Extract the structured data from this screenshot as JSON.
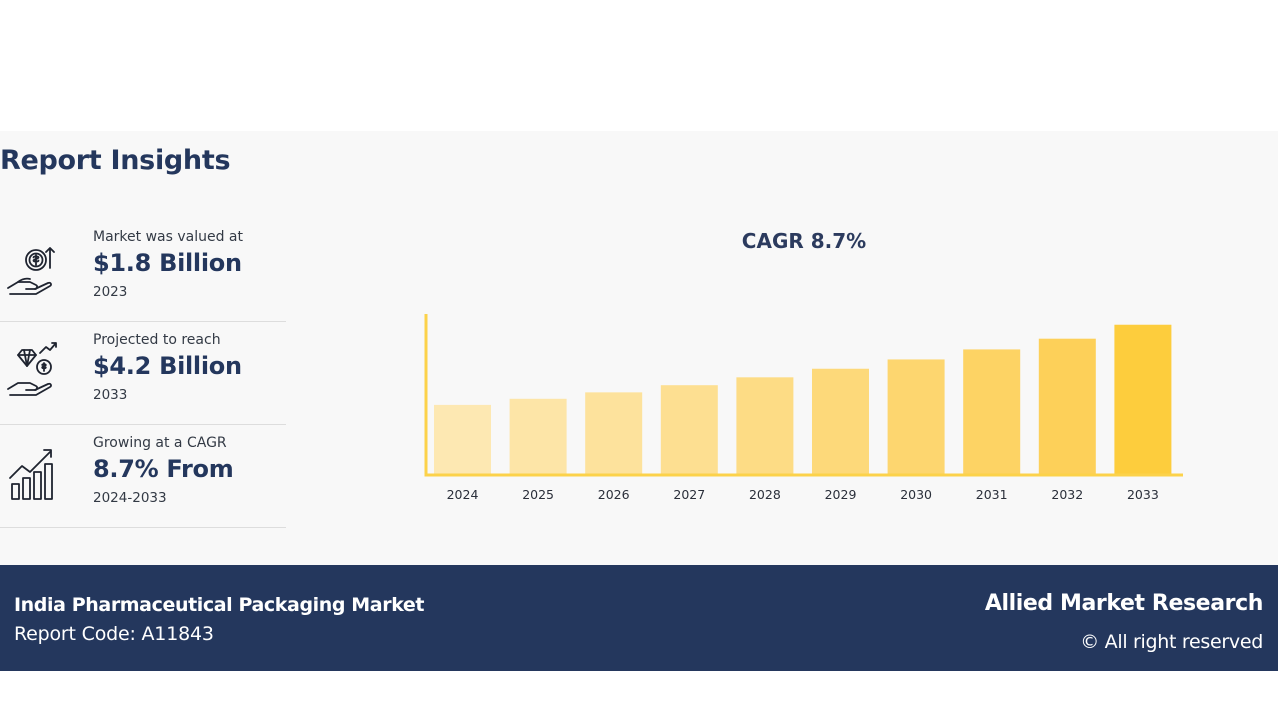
{
  "page": {
    "heading": "Report Insights"
  },
  "stats": [
    {
      "label": "Market was valued at",
      "value": "$1.8 Billion",
      "year": "2023",
      "icon": "money-hand-icon"
    },
    {
      "label": "Projected to reach",
      "value": "$4.2 Billion",
      "year": "2033",
      "icon": "diamond-coin-hand-icon"
    },
    {
      "label": "Growing at a CAGR",
      "value": "8.7% From",
      "year": "2024-2033",
      "icon": "growth-bars-icon"
    }
  ],
  "chart_data": {
    "type": "bar",
    "title": "CAGR 8.7%",
    "xlabel": "",
    "ylabel": "",
    "categories": [
      "2024",
      "2025",
      "2026",
      "2027",
      "2028",
      "2029",
      "2030",
      "2031",
      "2032",
      "2033"
    ],
    "values": [
      1.96,
      2.13,
      2.31,
      2.51,
      2.73,
      2.97,
      3.23,
      3.51,
      3.81,
      4.2
    ],
    "ylim": [
      0,
      4.5
    ],
    "grid": false,
    "colors": [
      "#fde8b2",
      "#fde5a7",
      "#fde29c",
      "#fddf91",
      "#fddc85",
      "#fdd97a",
      "#fdd66f",
      "#fdd364",
      "#fdd059",
      "#fdcd3d"
    ],
    "axis_color": "#fcd24a"
  },
  "footer": {
    "market_name": "India Pharmaceutical Packaging Market",
    "report_code": "Report Code: A11843",
    "brand": "Allied Market Research",
    "rights": "© All right reserved"
  }
}
